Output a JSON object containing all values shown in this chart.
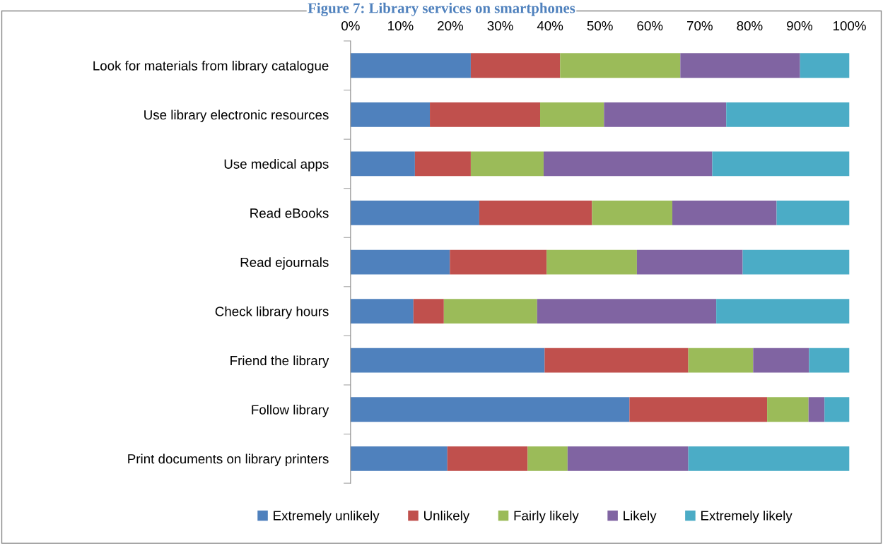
{
  "chart_data": {
    "type": "bar",
    "orientation": "horizontal",
    "stacked": true,
    "title": "Figure 7: Library services on smartphones",
    "categories": [
      "Look for materials from library catalogue",
      "Use library electronic resources",
      "Use medical apps",
      "Read eBooks",
      "Read ejournals",
      "Check library hours",
      "Friend the library",
      "Follow library",
      "Print documents on library printers"
    ],
    "series": [
      {
        "name": "Extremely unlikely",
        "color": "#4f81bd",
        "values": [
          24.1,
          15.9,
          12.9,
          25.8,
          19.9,
          12.6,
          38.9,
          55.9,
          19.4
        ]
      },
      {
        "name": "Unlikely",
        "color": "#c0504d",
        "values": [
          17.9,
          22.1,
          11.2,
          22.6,
          19.4,
          6.1,
          28.8,
          27.6,
          16.1
        ]
      },
      {
        "name": "Fairly likely",
        "color": "#9bbb59",
        "values": [
          24.1,
          12.8,
          14.6,
          16.1,
          18.1,
          18.7,
          13.0,
          8.3,
          8.0
        ]
      },
      {
        "name": "Likely",
        "color": "#8064a2",
        "values": [
          24.0,
          24.5,
          33.8,
          20.9,
          21.2,
          35.9,
          11.2,
          3.2,
          24.2
        ]
      },
      {
        "name": "Extremely likely",
        "color": "#4bacc6",
        "values": [
          9.9,
          24.7,
          27.5,
          14.6,
          21.4,
          26.7,
          8.1,
          5.0,
          32.3
        ]
      }
    ],
    "xlim": [
      0,
      100
    ],
    "xticks": [
      {
        "value": 0,
        "label": "0%"
      },
      {
        "value": 10,
        "label": "10%"
      },
      {
        "value": 20,
        "label": "20%"
      },
      {
        "value": 30,
        "label": "30%"
      },
      {
        "value": 40,
        "label": "40%"
      },
      {
        "value": 50,
        "label": "50%"
      },
      {
        "value": 60,
        "label": "60%"
      },
      {
        "value": 70,
        "label": "70%"
      },
      {
        "value": 80,
        "label": "80%"
      },
      {
        "value": 90,
        "label": "90%"
      },
      {
        "value": 100,
        "label": "100%"
      }
    ],
    "grid": false,
    "legend": "bottom"
  }
}
